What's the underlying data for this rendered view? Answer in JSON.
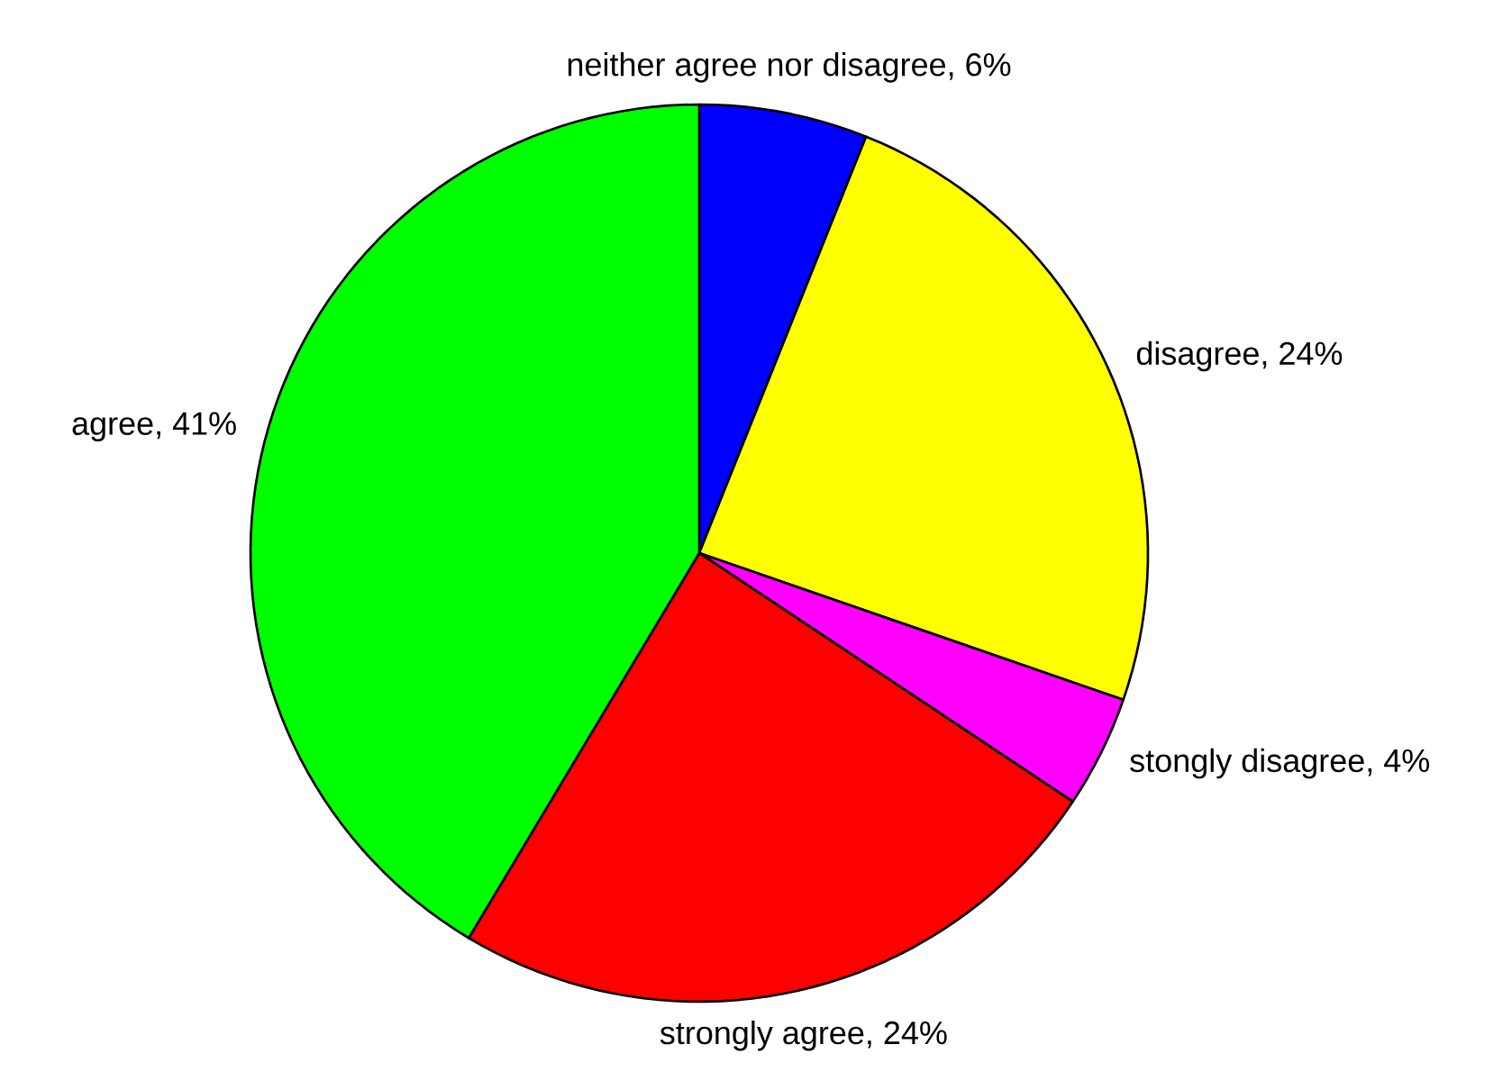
{
  "chart_data": {
    "type": "pie",
    "categories": [
      "neither agree nor disagree, 6%",
      "disagree, 24%",
      "stongly disagree, 4%",
      "strongly agree, 24%",
      "agree, 41%"
    ],
    "values": [
      6,
      24,
      4,
      24,
      41
    ],
    "colors": [
      "#0000ff",
      "#ffff00",
      "#ff00ff",
      "#ff0000",
      "#00ff00"
    ]
  }
}
